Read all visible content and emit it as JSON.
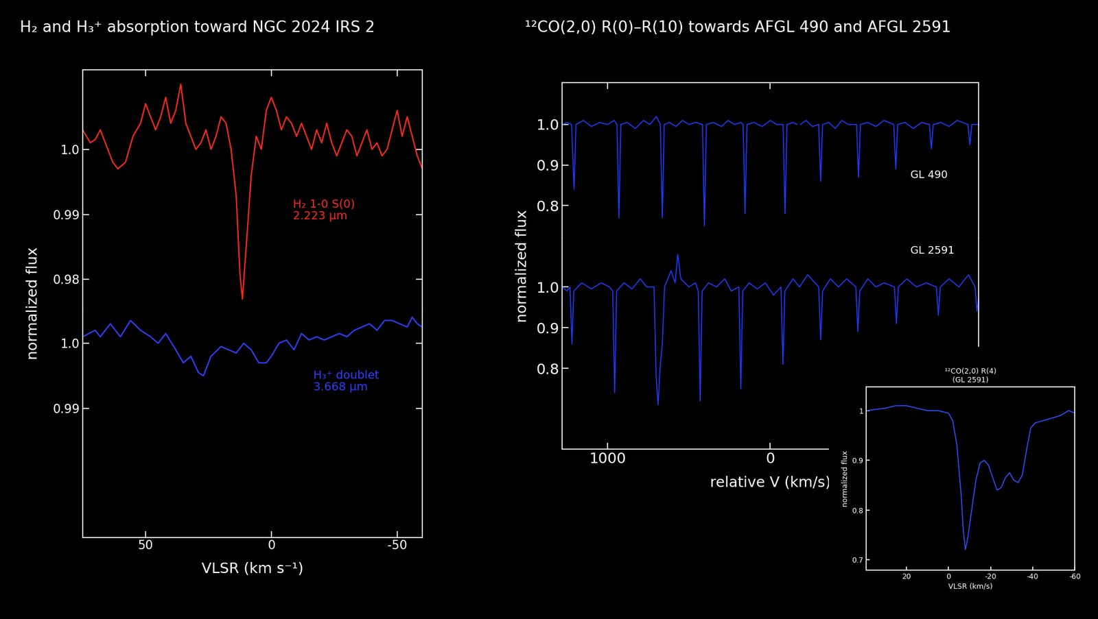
{
  "chart_data": [
    {
      "type": "line",
      "title": "H₂ and H₃⁺ absorption toward NGC 2024 IRS 2",
      "y_label": "normalized flux",
      "xlim": [
        75,
        -60
      ],
      "xticks": [
        50,
        0,
        -50
      ],
      "ylim": [
        0.9751,
        1.0122
      ],
      "yticks": [
        0.98,
        0.99,
        1.0
      ],
      "tick_labels": "y",
      "annotations": [
        "H₂ 1-0 S(0)\n2.223 μm"
      ],
      "series": [
        {
          "color": "#ff2b1c",
          "x": [
            75,
            72,
            70,
            68,
            66,
            63,
            61,
            58,
            55,
            52,
            50,
            48,
            46,
            44,
            42,
            40,
            38,
            36,
            34,
            32,
            30,
            28,
            26,
            24,
            22,
            20,
            18,
            16,
            14,
            12.5,
            11.5,
            10,
            8,
            6,
            4,
            2,
            0,
            -2,
            -4,
            -6,
            -8,
            -10,
            -12,
            -14,
            -16,
            -18,
            -20,
            -22,
            -24,
            -26,
            -28,
            -30,
            -32,
            -34,
            -36,
            -38,
            -40,
            -42,
            -44,
            -46,
            -48,
            -50,
            -52,
            -54,
            -56,
            -58,
            -60
          ],
          "values": [
            1.003,
            1.001,
            1.0015,
            1.003,
            1.001,
            0.998,
            0.997,
            0.998,
            1.002,
            1.004,
            1.007,
            1.005,
            1.003,
            1.005,
            1.008,
            1.004,
            1.006,
            1.01,
            1.004,
            1.002,
            1.0,
            1.001,
            1.003,
            1.0,
            1.002,
            1.005,
            1.004,
            1.0,
            0.993,
            0.981,
            0.977,
            0.985,
            0.996,
            1.002,
            1.0,
            1.006,
            1.008,
            1.006,
            1.003,
            1.005,
            1.004,
            1.002,
            1.004,
            1.002,
            1.0,
            1.003,
            1.001,
            1.004,
            1.001,
            0.999,
            1.001,
            1.003,
            1.002,
            0.999,
            1.001,
            1.003,
            1.0,
            1.001,
            0.999,
            1.0,
            1.003,
            1.006,
            1.002,
            1.005,
            1.002,
            0.999,
            0.997
          ]
        }
      ]
    },
    {
      "type": "line",
      "x_label": "VLSR (km s⁻¹)",
      "xlim": [
        75,
        -60
      ],
      "xticks": [
        50,
        0,
        -50
      ],
      "ylim": [
        0.9702,
        1.0049
      ],
      "yticks": [
        0.99,
        1.0
      ],
      "annotations": [
        "H₃⁺ doublet\n3.668 μm"
      ],
      "series": [
        {
          "color": "#2f3fff",
          "x": [
            75,
            70,
            68,
            64,
            60,
            56,
            52,
            48,
            45,
            42,
            38,
            35,
            32,
            29,
            27,
            24,
            20,
            17,
            14,
            11,
            8,
            5,
            2,
            0,
            -3,
            -6,
            -9,
            -12,
            -15,
            -18,
            -21,
            -24,
            -27,
            -30,
            -33,
            -36,
            -39,
            -42,
            -45,
            -48,
            -51,
            -54,
            -56,
            -58,
            -60
          ],
          "values": [
            1.001,
            1.002,
            1.001,
            1.003,
            1.001,
            1.0035,
            1.002,
            1.001,
            1.0,
            1.0015,
            0.999,
            0.997,
            0.998,
            0.9955,
            0.995,
            0.998,
            0.9995,
            0.999,
            0.9985,
            1.0,
            0.999,
            0.997,
            0.997,
            0.998,
            1.0,
            1.0005,
            0.999,
            1.0015,
            1.0005,
            1.001,
            1.0005,
            1.001,
            1.0015,
            1.001,
            1.002,
            1.0025,
            1.003,
            1.002,
            1.0035,
            1.0035,
            1.003,
            1.0025,
            1.004,
            1.003,
            1.0025
          ]
        }
      ]
    },
    {
      "type": "line",
      "title": "¹²CO(2,0) R(0)–R(10) towards AFGL 490 and AFGL 2591",
      "xlim": [
        1280,
        -1280
      ],
      "xticks": [
        1000,
        0
      ],
      "ylim": [
        0.7207,
        1.1034
      ],
      "yticks": [
        0.8,
        0.9,
        1.0
      ],
      "tick_labels": "y",
      "annotations": [
        "GL 490"
      ],
      "series": [
        {
          "color": "#1f3cff",
          "x": [
            1280,
            1250,
            1222,
            1207,
            1195,
            1150,
            1100,
            1050,
            1000,
            960,
            943,
            931,
            919,
            880,
            830,
            780,
            740,
            700,
            676,
            664,
            652,
            620,
            580,
            540,
            500,
            460,
            417,
            405,
            393,
            350,
            300,
            260,
            220,
            180,
            167,
            155,
            143,
            100,
            50,
            0,
            -40,
            -79,
            -91,
            -103,
            -140,
            -165,
            -172,
            -185,
            -220,
            -260,
            -298,
            -310,
            -322,
            -360,
            -400,
            -440,
            -480,
            -531,
            -543,
            -555,
            -600,
            -650,
            -700,
            -760,
            -772,
            -784,
            -830,
            -880,
            -930,
            -979,
            -991,
            -1003,
            -1050,
            -1100,
            -1150,
            -1216,
            -1228,
            -1240,
            -1280
          ],
          "values": [
            1.0,
            1.005,
            1.0,
            0.84,
            1.0,
            1.01,
            0.995,
            1.005,
            1.0,
            1.01,
            1.0,
            0.77,
            1.0,
            1.005,
            0.99,
            1.01,
            1.0,
            1.02,
            1.0,
            0.77,
            1.0,
            1.005,
            0.995,
            1.01,
            1.0,
            1.005,
            1.0,
            0.75,
            1.0,
            1.005,
            0.995,
            1.01,
            1.0,
            1.005,
            1.0,
            0.78,
            1.0,
            1.005,
            0.995,
            1.01,
            1.0,
            1.0,
            0.78,
            1.0,
            1.005,
            1.0,
            null,
            1.0,
            1.01,
            0.995,
            1.0,
            0.86,
            1.0,
            1.005,
            0.99,
            1.01,
            1.0,
            1.0,
            0.87,
            1.0,
            1.005,
            0.995,
            1.01,
            1.0,
            0.89,
            1.0,
            1.005,
            0.99,
            1.005,
            1.0,
            0.94,
            1.0,
            1.005,
            0.995,
            1.01,
            1.0,
            0.95,
            1.0,
            1.0
          ]
        }
      ]
    },
    {
      "type": "line",
      "x_label": "relative V (km/s)",
      "y_label": "normalized flux",
      "xlim": [
        1280,
        -1280
      ],
      "xticks": [
        1000,
        0
      ],
      "ylim": [
        0.6017,
        1.1207
      ],
      "yticks": [
        0.8,
        0.9,
        1.0
      ],
      "annotations": [
        "GL 2591"
      ],
      "series": [
        {
          "color": "#1f3cff",
          "x": [
            1280,
            1250,
            1232,
            1220,
            1208,
            1160,
            1100,
            1040,
            990,
            969,
            957,
            945,
            900,
            850,
            800,
            760,
            715,
            702,
            690,
            678,
            664,
            650,
            610,
            585,
            569,
            550,
            500,
            460,
            443,
            431,
            419,
            380,
            330,
            280,
            240,
            193,
            181,
            169,
            130,
            80,
            30,
            -20,
            -66,
            -78,
            -90,
            -140,
            -180,
            -230,
            -298,
            -310,
            -322,
            -370,
            -420,
            -470,
            -527,
            -539,
            -551,
            -600,
            -650,
            -700,
            -764,
            -776,
            -788,
            -840,
            -900,
            -960,
            -1022,
            -1034,
            -1046,
            -1100,
            -1160,
            -1220,
            -1260,
            -1272,
            -1280
          ],
          "values": [
            1.0,
            0.99,
            1.0,
            0.86,
            0.99,
            1.01,
            0.995,
            1.01,
            1.0,
            0.99,
            0.74,
            0.99,
            1.01,
            0.995,
            1.02,
            1.0,
            1.0,
            0.78,
            0.71,
            0.8,
            0.86,
            1.0,
            1.04,
            1.01,
            1.08,
            1.02,
            1.0,
            1.01,
            0.99,
            0.72,
            0.99,
            1.01,
            1.0,
            1.02,
            0.99,
            1.0,
            0.75,
            0.99,
            1.01,
            0.995,
            1.01,
            0.98,
            1.0,
            0.81,
            0.99,
            1.02,
            1.0,
            1.03,
            1.0,
            0.87,
            0.99,
            1.02,
            1.0,
            1.02,
            1.0,
            0.89,
            0.99,
            1.02,
            1.0,
            1.01,
            1.0,
            0.91,
            1.0,
            1.02,
            1.0,
            1.01,
            1.0,
            0.93,
            1.0,
            1.02,
            1.0,
            1.03,
            1.0,
            0.94,
            0.97
          ]
        }
      ]
    },
    {
      "type": "line",
      "title": "¹²CO(2,0) R(4)\n(GL 2591)",
      "x_label": "VLSR (km/s)",
      "y_label": "normalized flux",
      "xlim": [
        39,
        -60
      ],
      "xticks": [
        20,
        0,
        -20,
        -40,
        -60
      ],
      "ylim": [
        0.679,
        1.048
      ],
      "yticks": [
        0.7,
        0.8,
        0.9,
        1
      ],
      "series": [
        {
          "color": "#3050ff",
          "x": [
            39,
            30,
            25,
            20,
            15,
            10,
            5,
            0,
            -2,
            -4,
            -6,
            -7,
            -8,
            -9,
            -11,
            -13,
            -15,
            -17,
            -19,
            -21,
            -23,
            -25,
            -27,
            -29,
            -31,
            -33,
            -35,
            -37,
            -39,
            -41,
            -45,
            -49,
            -53,
            -57,
            -60
          ],
          "values": [
            1.0,
            1.005,
            1.01,
            1.01,
            1.005,
            1.0,
            1.0,
            0.995,
            0.98,
            0.93,
            0.83,
            0.76,
            0.72,
            0.74,
            0.8,
            0.86,
            0.895,
            0.9,
            0.89,
            0.865,
            0.84,
            0.845,
            0.865,
            0.875,
            0.86,
            0.855,
            0.87,
            0.92,
            0.965,
            0.975,
            0.98,
            0.985,
            0.99,
            1.0,
            0.995
          ]
        }
      ]
    }
  ]
}
